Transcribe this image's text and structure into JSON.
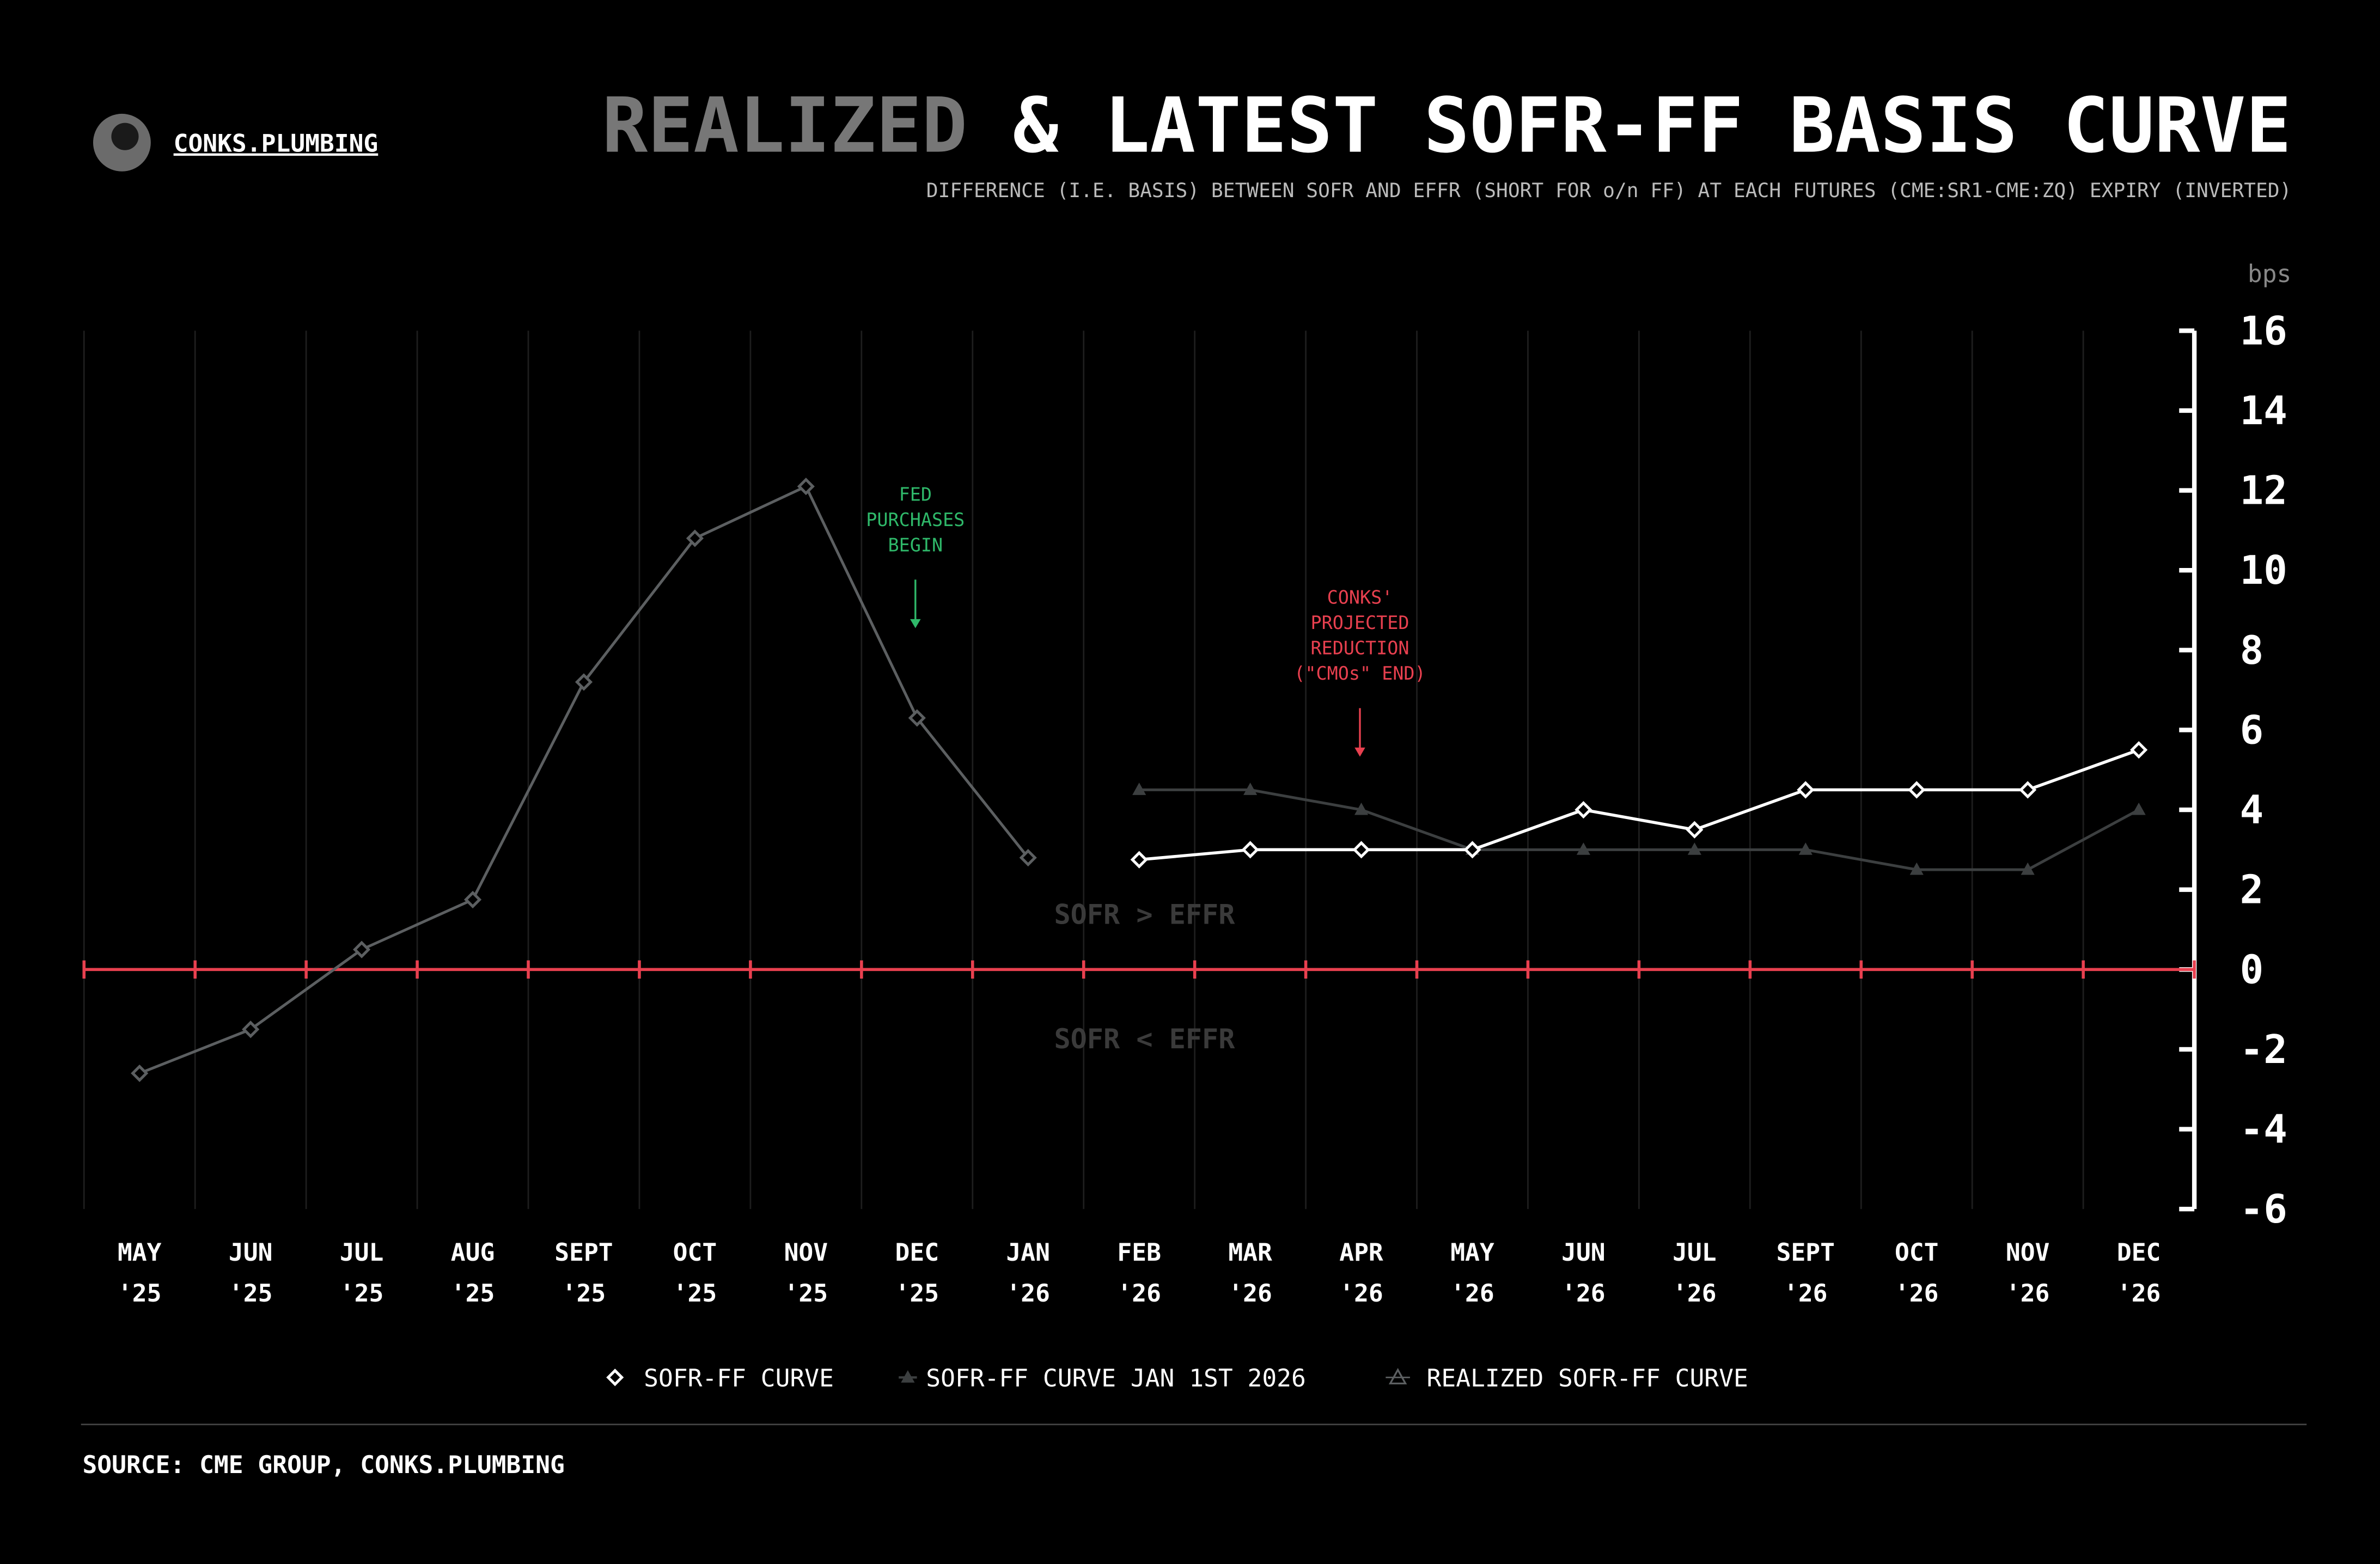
{
  "brand": "CONKS.PLUMBING",
  "source": "SOURCE: CME GROUP, CONKS.PLUMBING",
  "chart_data": {
    "type": "line",
    "title_muted": "REALIZED",
    "title": "& LATEST SOFR-FF BASIS CURVE",
    "subtitle": "DIFFERENCE (I.E. BASIS) BETWEEN SOFR AND EFFR (SHORT FOR o/n FF) AT EACH FUTURES (CME:SR1-CME:ZQ) EXPIRY (INVERTED)",
    "y_label": "bps",
    "categories": [
      "MAY '25",
      "JUN '25",
      "JUL '25",
      "AUG '25",
      "SEPT '25",
      "OCT '25",
      "NOV '25",
      "DEC '25",
      "JAN '26",
      "FEB '26",
      "MAR '26",
      "APR '26",
      "MAY '26",
      "JUN '26",
      "JUL '26",
      "SEPT '26",
      "OCT '26",
      "NOV '26",
      "DEC '26"
    ],
    "series": [
      {
        "name": "SOFR-FF CURVE",
        "color": "#ffffff",
        "marker": "diamond",
        "values": [
          null,
          null,
          null,
          null,
          null,
          null,
          null,
          null,
          null,
          2.75,
          3,
          3,
          3,
          4,
          3.5,
          4.5,
          4.5,
          4.5,
          5.5
        ]
      },
      {
        "name": "SOFR-FF CURVE JAN 1ST 2026",
        "color": "#3c3f40",
        "marker": "triangle",
        "values": [
          null,
          null,
          null,
          null,
          null,
          null,
          null,
          null,
          null,
          4.5,
          4.5,
          4,
          3,
          3,
          3,
          3,
          2.5,
          2.5,
          4
        ]
      },
      {
        "name": "REALIZED SOFR-FF CURVE",
        "color": "#5c5f61",
        "marker": "diamond",
        "values": [
          -2.6,
          -1.5,
          0.5,
          1.75,
          7.2,
          10.8,
          12.1,
          6.3,
          2.8,
          null,
          null,
          null,
          null,
          null,
          null,
          null,
          null,
          null,
          null
        ]
      }
    ],
    "ylim": [
      -6,
      16
    ],
    "yticks": [
      -6,
      -4,
      -2,
      0,
      2,
      4,
      6,
      8,
      10,
      12,
      14,
      16
    ],
    "zero_line_color": "#e8404f",
    "grid": true,
    "legend": "bottom",
    "annotations": [
      {
        "lines": [
          "FED",
          "PURCHASES",
          "BEGIN"
        ],
        "color": "#2fb96a"
      },
      {
        "lines": [
          "CONKS'",
          "PROJECTED",
          "REDUCTION",
          "(\"CMOs\" END)"
        ],
        "color": "#e8404f"
      }
    ],
    "regions": [
      "SOFR > EFFR",
      "SOFR < EFFR"
    ]
  }
}
